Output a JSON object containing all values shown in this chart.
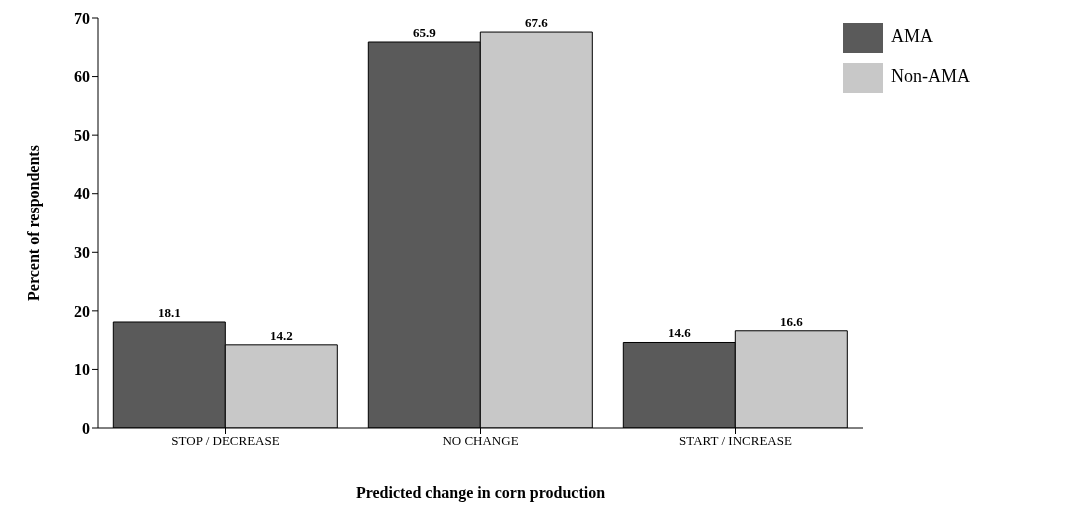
{
  "chart_data": {
    "type": "bar",
    "xlabel": "Predicted change in corn production",
    "ylabel": "Percent of respondents",
    "categories": [
      "STOP / DECREASE",
      "NO CHANGE",
      "START / INCREASE"
    ],
    "series": [
      {
        "name": "AMA",
        "color": "#5a5a5a",
        "values": [
          18.1,
          65.9,
          14.6
        ]
      },
      {
        "name": "Non-AMA",
        "color": "#c8c8c8",
        "values": [
          14.2,
          67.6,
          16.6
        ]
      }
    ],
    "ylim": [
      0,
      70
    ],
    "yticks": [
      0,
      10,
      20,
      30,
      40,
      50,
      60,
      70
    ],
    "grid": false,
    "legend": "top right",
    "data_labels": true
  }
}
